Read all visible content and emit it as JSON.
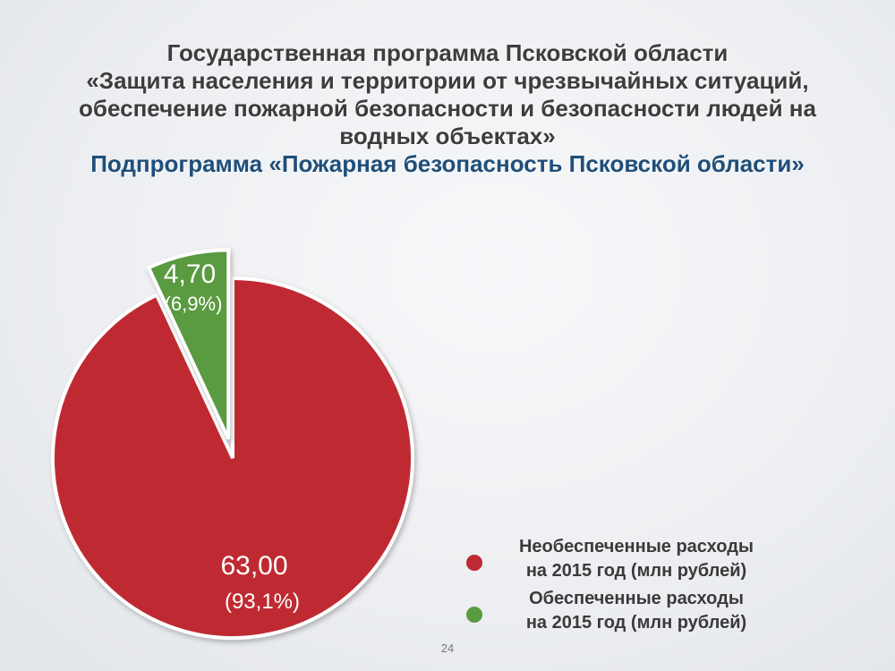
{
  "slide": {
    "title_lines": [
      "Государственная программа Псковской области",
      "«Защита населения и территории от чрезвычайных ситуаций,",
      "обеспечение пожарной безопасности и безопасности людей на",
      "водных объектах»"
    ],
    "subtitle": "Подпрограмма «Пожарная безопасность Псковской области»",
    "page_number": "24"
  },
  "colors": {
    "unfunded": "#bf2a32",
    "funded": "#5a9a40",
    "title": "#3d3d3d",
    "subtitle": "#1f4e79"
  },
  "chart_data": {
    "type": "pie",
    "title": "",
    "slices": [
      {
        "name_line1": "Необеспеченные расходы",
        "name_line2": "на 2015 год  (млн рублей)",
        "value": 63.0,
        "value_label": "63,00",
        "percent_label": "(93,1%)",
        "percent": 93.1,
        "exploded": false
      },
      {
        "name_line1": "Обеспеченные расходы",
        "name_line2": "на 2015 год (млн рублей)",
        "value": 4.7,
        "value_label": "4,70",
        "percent_label": "(6,9%)",
        "percent": 6.9,
        "exploded": true
      }
    ],
    "legend_position": "bottom-right"
  }
}
